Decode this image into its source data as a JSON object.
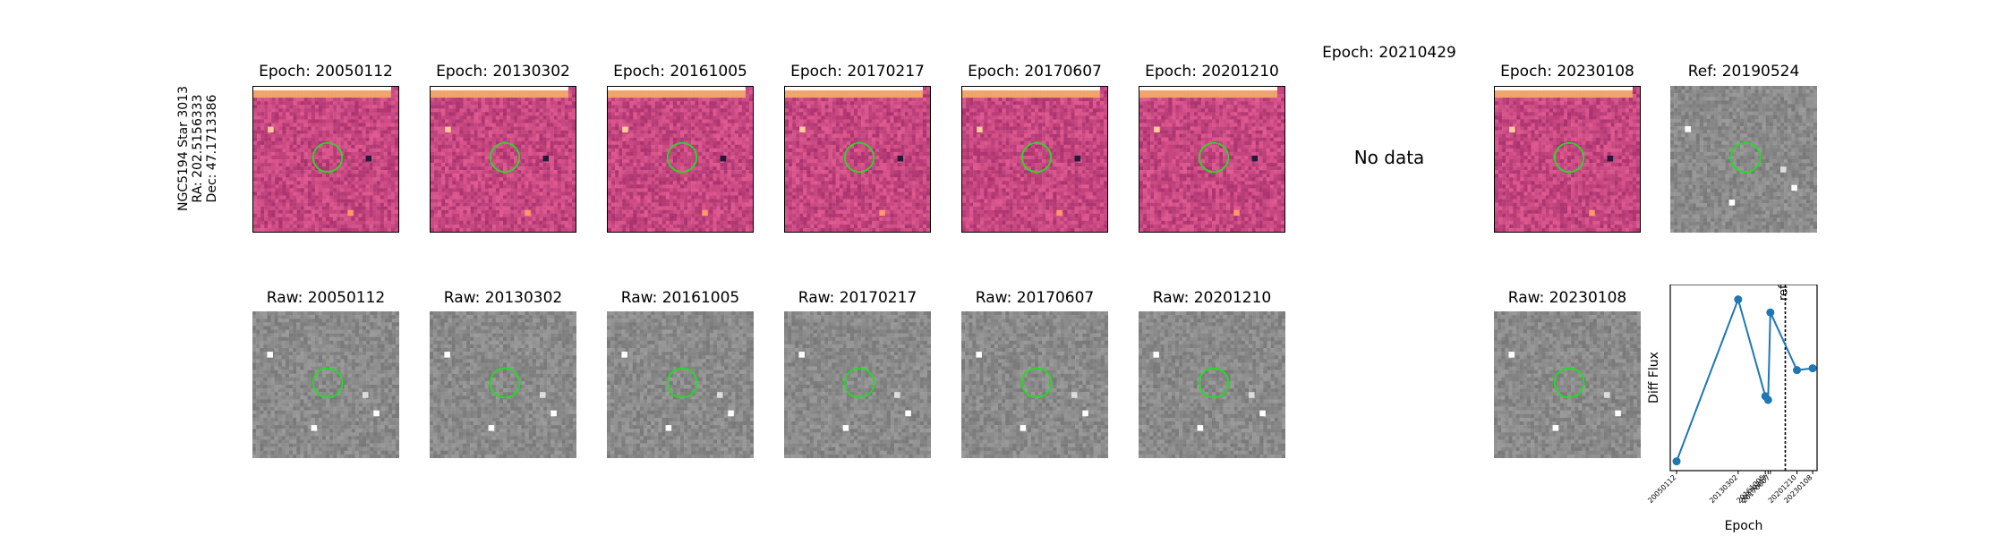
{
  "star": {
    "name": "NGC5194 Star 3013",
    "ra": "RA: 202.5156333",
    "dec": "Dec: 47.1713386"
  },
  "diff_titles": [
    "Epoch: 20050112",
    "Epoch: 20130302",
    "Epoch: 20161005",
    "Epoch: 20170217",
    "Epoch: 20170607",
    "Epoch: 20201210",
    "Epoch: 20210429",
    "Epoch: 20230108"
  ],
  "ref_title": "Ref: 20190524",
  "no_data": "No data",
  "raw_titles": [
    "Raw: 20050112",
    "Raw: 20130302",
    "Raw: 20161005",
    "Raw: 20170217",
    "Raw: 20170607",
    "Raw: 20201210",
    "Raw: 20230108"
  ],
  "colors": {
    "diff_base": "#b8457a",
    "raw_base": "#8a8a8a",
    "aperture": "#22dd22",
    "line": "#1f77b4"
  },
  "chart_data": {
    "type": "line",
    "title": "",
    "xlabel": "Epoch",
    "ylabel": "Diff Flux",
    "categories": [
      "20050112",
      "20130302",
      "20161005",
      "20170217",
      "20170607",
      "20201210",
      "20230108"
    ],
    "x": [
      2005.03,
      2013.17,
      2016.76,
      2017.13,
      2017.43,
      2020.94,
      2023.02
    ],
    "values": [
      0.05,
      0.92,
      0.4,
      0.38,
      0.85,
      0.54,
      0.55
    ],
    "ylim": [
      0,
      1
    ],
    "xlim": [
      2004.2,
      2023.6
    ],
    "ref_line": {
      "x": 2019.4,
      "label": "ref"
    },
    "tick_labels": [
      "20050112",
      "20130302",
      "20161005",
      "20170217",
      "20170607",
      "20201210",
      "20230108"
    ]
  }
}
